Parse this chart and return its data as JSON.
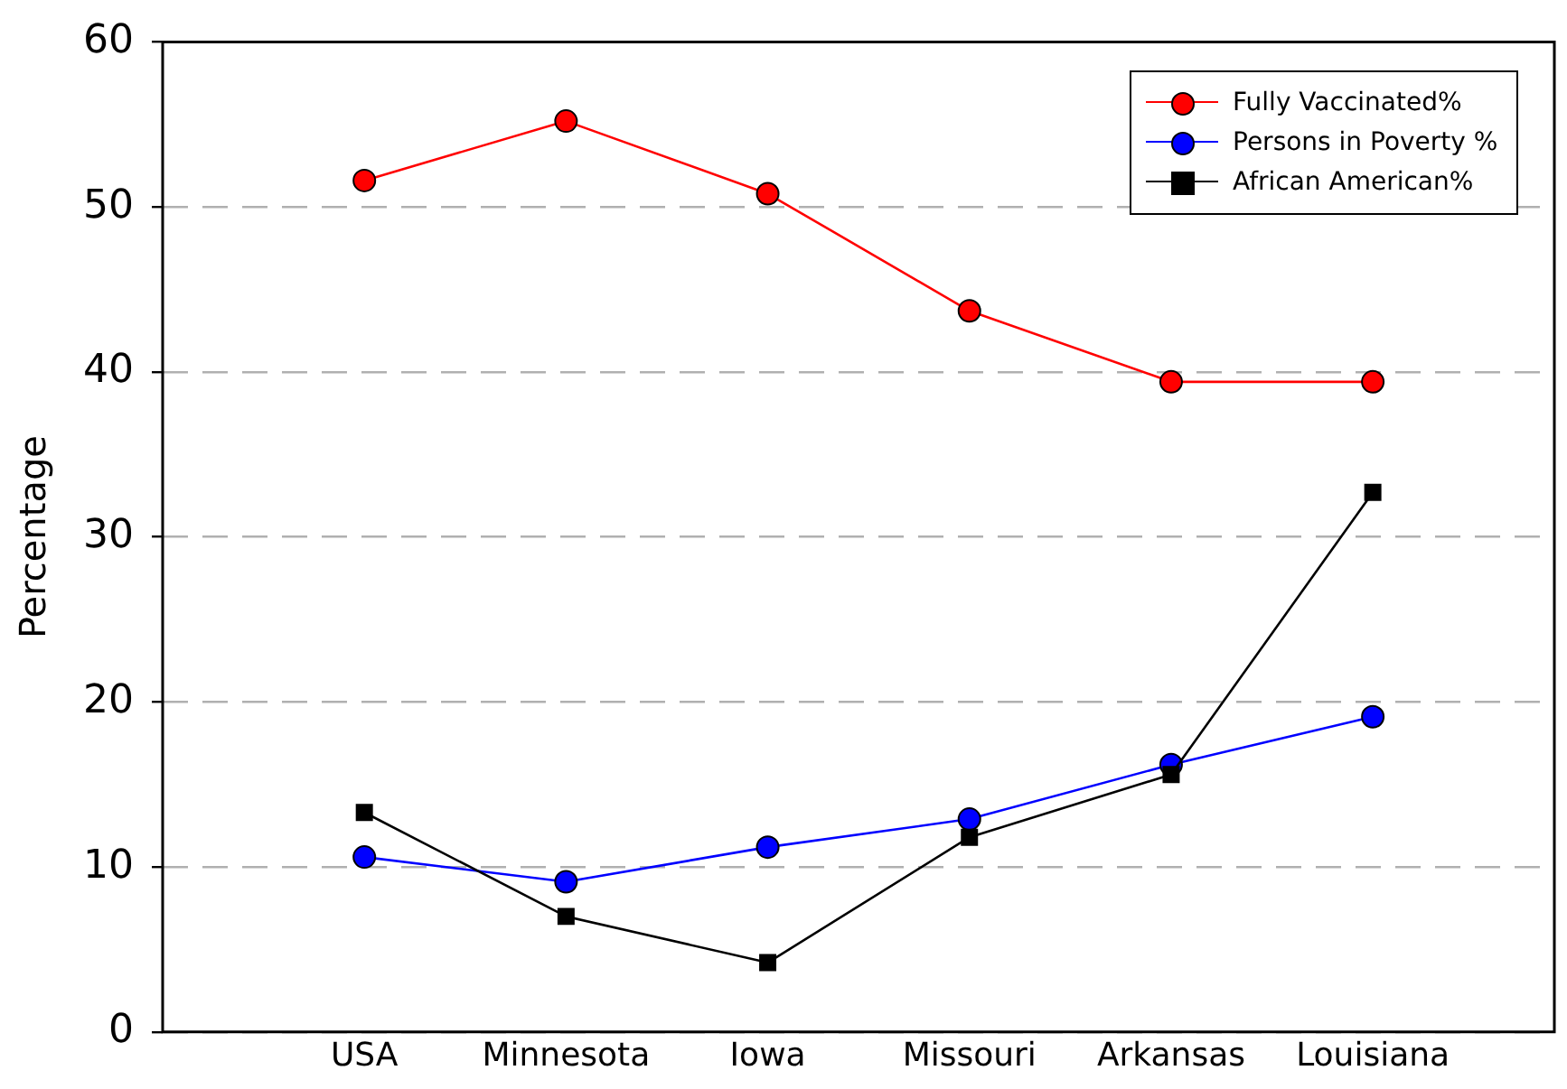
{
  "chart_data": {
    "type": "line",
    "ylabel": "Percentage",
    "categories": [
      "USA",
      "Minnesota",
      "Iowa",
      "Missouri",
      "Arkansas",
      "Louisiana"
    ],
    "series": [
      {
        "name": "Fully Vaccinated%",
        "color": "#ff0000",
        "marker": "circle",
        "values": [
          51.6,
          55.2,
          50.8,
          43.7,
          39.4,
          39.4
        ]
      },
      {
        "name": "Persons in Poverty %",
        "color": "#0000ff",
        "marker": "circle",
        "values": [
          10.6,
          9.1,
          11.2,
          12.9,
          16.2,
          19.1
        ]
      },
      {
        "name": "African American%",
        "color": "#000000",
        "marker": "square",
        "values": [
          13.3,
          7.0,
          4.2,
          11.8,
          15.6,
          32.7
        ]
      }
    ],
    "ylim": [
      0,
      60
    ],
    "yticks": [
      0,
      10,
      20,
      30,
      40,
      50,
      60
    ],
    "grid": "y",
    "legend": "top right",
    "line_style": "solid"
  }
}
